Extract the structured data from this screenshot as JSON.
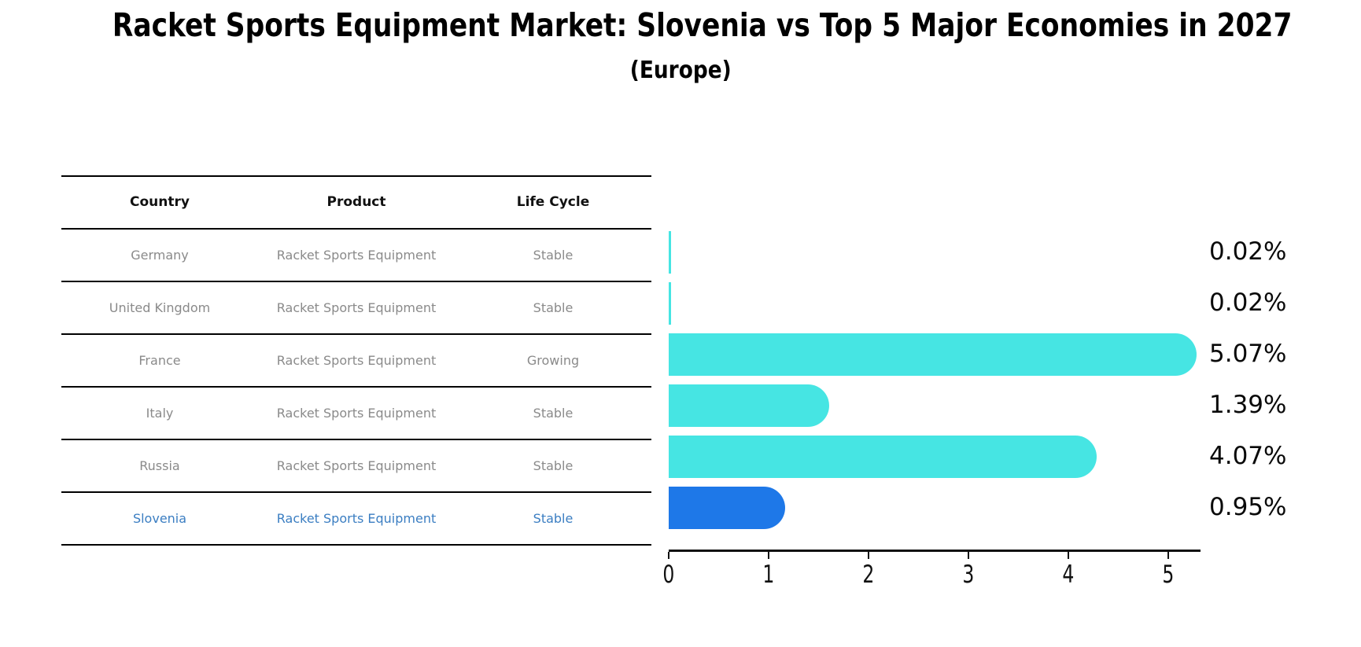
{
  "title": "Racket Sports Equipment Market: Slovenia vs Top 5 Major Economies in 2027",
  "subtitle": "(Europe)",
  "table": {
    "headers": [
      "Country",
      "Product",
      "Life Cycle"
    ],
    "rows": [
      {
        "country": "Germany",
        "product": "Racket Sports Equipment",
        "life_cycle": "Stable",
        "highlight": false
      },
      {
        "country": "United Kingdom",
        "product": "Racket Sports Equipment",
        "life_cycle": "Stable",
        "highlight": false
      },
      {
        "country": "France",
        "product": "Racket Sports Equipment",
        "life_cycle": "Growing",
        "highlight": false
      },
      {
        "country": "Italy",
        "product": "Racket Sports Equipment",
        "life_cycle": "Stable",
        "highlight": false
      },
      {
        "country": "Russia",
        "product": "Racket Sports Equipment",
        "life_cycle": "Stable",
        "highlight": false
      },
      {
        "country": "Slovenia",
        "product": "Racket Sports Equipment",
        "life_cycle": "Stable",
        "highlight": true
      }
    ]
  },
  "chart_data": {
    "type": "bar",
    "orientation": "horizontal",
    "categories": [
      "Germany",
      "United Kingdom",
      "France",
      "Italy",
      "Russia",
      "Slovenia"
    ],
    "values": [
      0.02,
      0.02,
      5.07,
      1.39,
      4.07,
      0.95
    ],
    "value_labels": [
      "0.02%",
      "0.02%",
      "5.07%",
      "1.39%",
      "4.07%",
      "0.95%"
    ],
    "x_ticks": [
      "0",
      "1",
      "2",
      "3",
      "4",
      "5"
    ],
    "xlim": [
      0,
      5.3
    ],
    "grid": false,
    "legend": "none",
    "bar_color": "#46e5e3",
    "highlight_bar_color": "#1e78e8",
    "highlight_index": 5,
    "highlight_text_color": "#3b7ec2"
  }
}
